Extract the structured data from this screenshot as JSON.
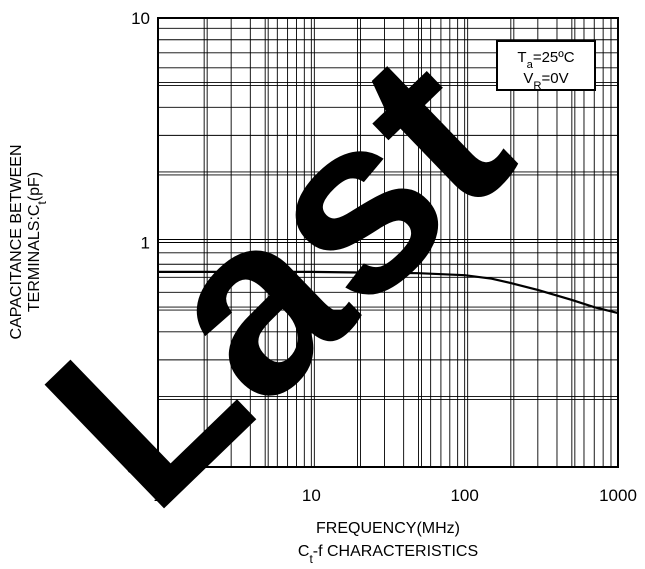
{
  "watermark": {
    "text": "Last"
  },
  "chart_data": {
    "type": "line",
    "title": "",
    "subtitle": "Ct-f CHARACTERISTICS",
    "xlabel": "FREQUENCY(MHz)",
    "ylabel_line1": "CAPACITANCE BETWEEN",
    "ylabel_line2": "TERMINALS:Ct(pF)",
    "xscale": "log",
    "yscale": "log",
    "xlim": [
      1,
      1000
    ],
    "ylim": [
      0.1,
      10
    ],
    "grid": true,
    "x_ticks": [
      "1",
      "10",
      "100",
      "1000"
    ],
    "y_ticks": [
      "0.1",
      "1",
      "10"
    ],
    "legend": {
      "placement": "top-right",
      "line1": "Ta=25ºC",
      "line2": "VR=0V"
    },
    "series": [
      {
        "x": [
          1,
          2,
          5,
          10,
          20,
          50,
          100,
          150,
          200,
          300,
          400,
          500,
          700,
          1000
        ],
        "y": [
          0.74,
          0.74,
          0.74,
          0.74,
          0.735,
          0.73,
          0.715,
          0.69,
          0.66,
          0.615,
          0.58,
          0.555,
          0.515,
          0.485
        ]
      }
    ],
    "colors": {
      "line": "#000000",
      "grid": "#000000",
      "watermark": "#000000"
    }
  }
}
